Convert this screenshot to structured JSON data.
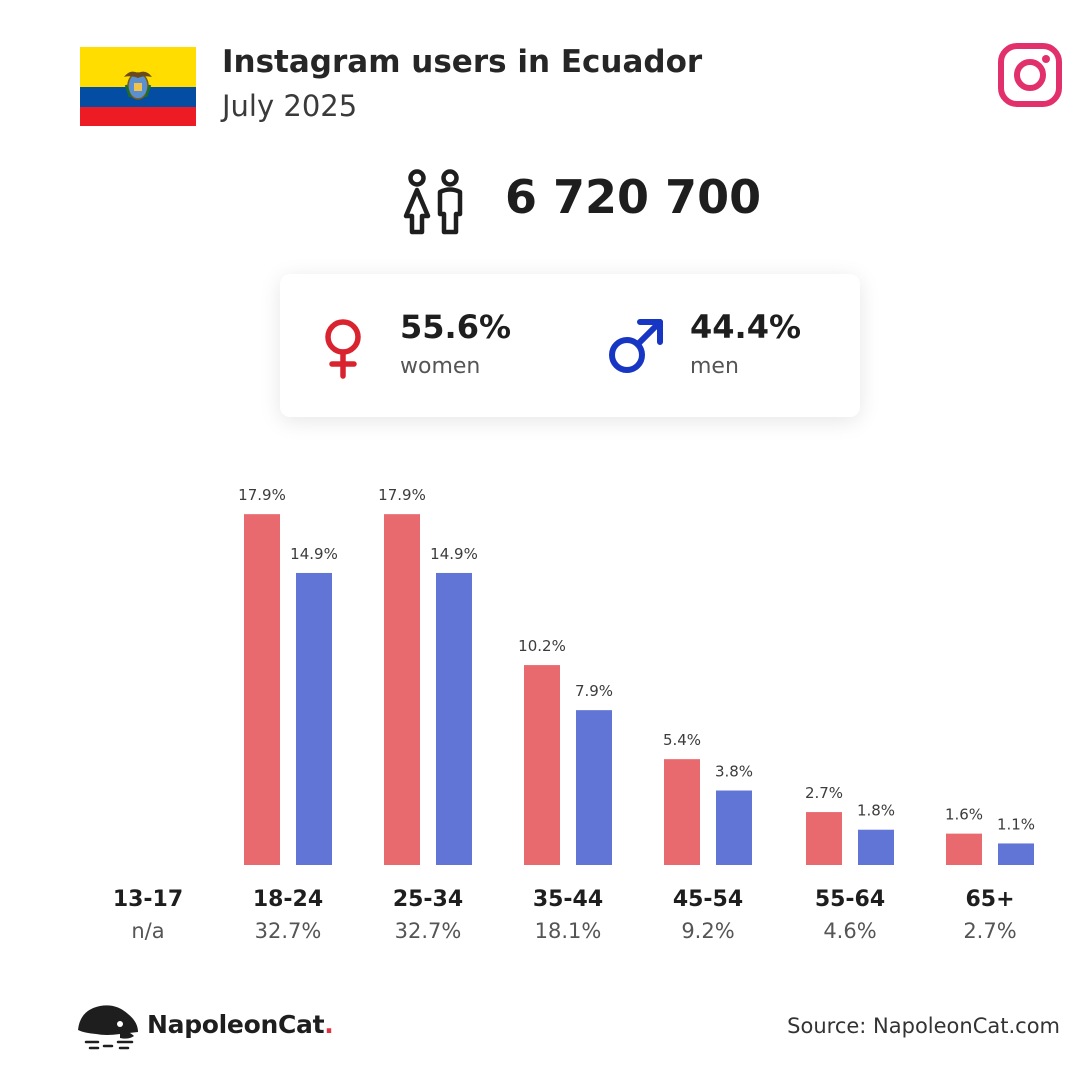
{
  "header": {
    "title": "Instagram users in Ecuador",
    "subtitle": "July 2025"
  },
  "total_users": "6 720 700",
  "gender": {
    "women": {
      "pct": "55.6%",
      "label": "women"
    },
    "men": {
      "pct": "44.4%",
      "label": "men"
    }
  },
  "icons": {
    "flag": "ecuador-flag-icon",
    "app": "instagram-icon",
    "users": "users-icon",
    "female": "female-symbol-icon",
    "male": "male-symbol-icon",
    "logo": "napoleoncat-logo-icon"
  },
  "colors": {
    "women": "#e8696e",
    "men": "#6075d6",
    "female_symbol": "#d9232e",
    "male_symbol": "#1836c4",
    "instagram": "#e1306c",
    "flag_yellow": "#ffdd00",
    "flag_blue": "#034ea2",
    "flag_red": "#ed1c24"
  },
  "chart_data": {
    "type": "bar",
    "categories": [
      "13-17",
      "18-24",
      "25-34",
      "35-44",
      "45-54",
      "55-64",
      "65+"
    ],
    "category_totals": [
      "n/a",
      "32.7%",
      "32.7%",
      "18.1%",
      "9.2%",
      "4.6%",
      "2.7%"
    ],
    "series": [
      {
        "name": "women",
        "values": [
          null,
          17.9,
          17.9,
          10.2,
          5.4,
          2.7,
          1.6
        ],
        "labels": [
          "",
          "17.9%",
          "17.9%",
          "10.2%",
          "5.4%",
          "2.7%",
          "1.6%"
        ]
      },
      {
        "name": "men",
        "values": [
          null,
          14.9,
          14.9,
          7.9,
          3.8,
          1.8,
          1.1
        ],
        "labels": [
          "",
          "14.9%",
          "14.9%",
          "7.9%",
          "3.8%",
          "1.8%",
          "1.1%"
        ]
      }
    ],
    "grid": false,
    "legend": "none"
  },
  "footer": {
    "brand": "NapoleonCat",
    "brand_dot": ".",
    "source": "Source: NapoleonCat.com"
  }
}
